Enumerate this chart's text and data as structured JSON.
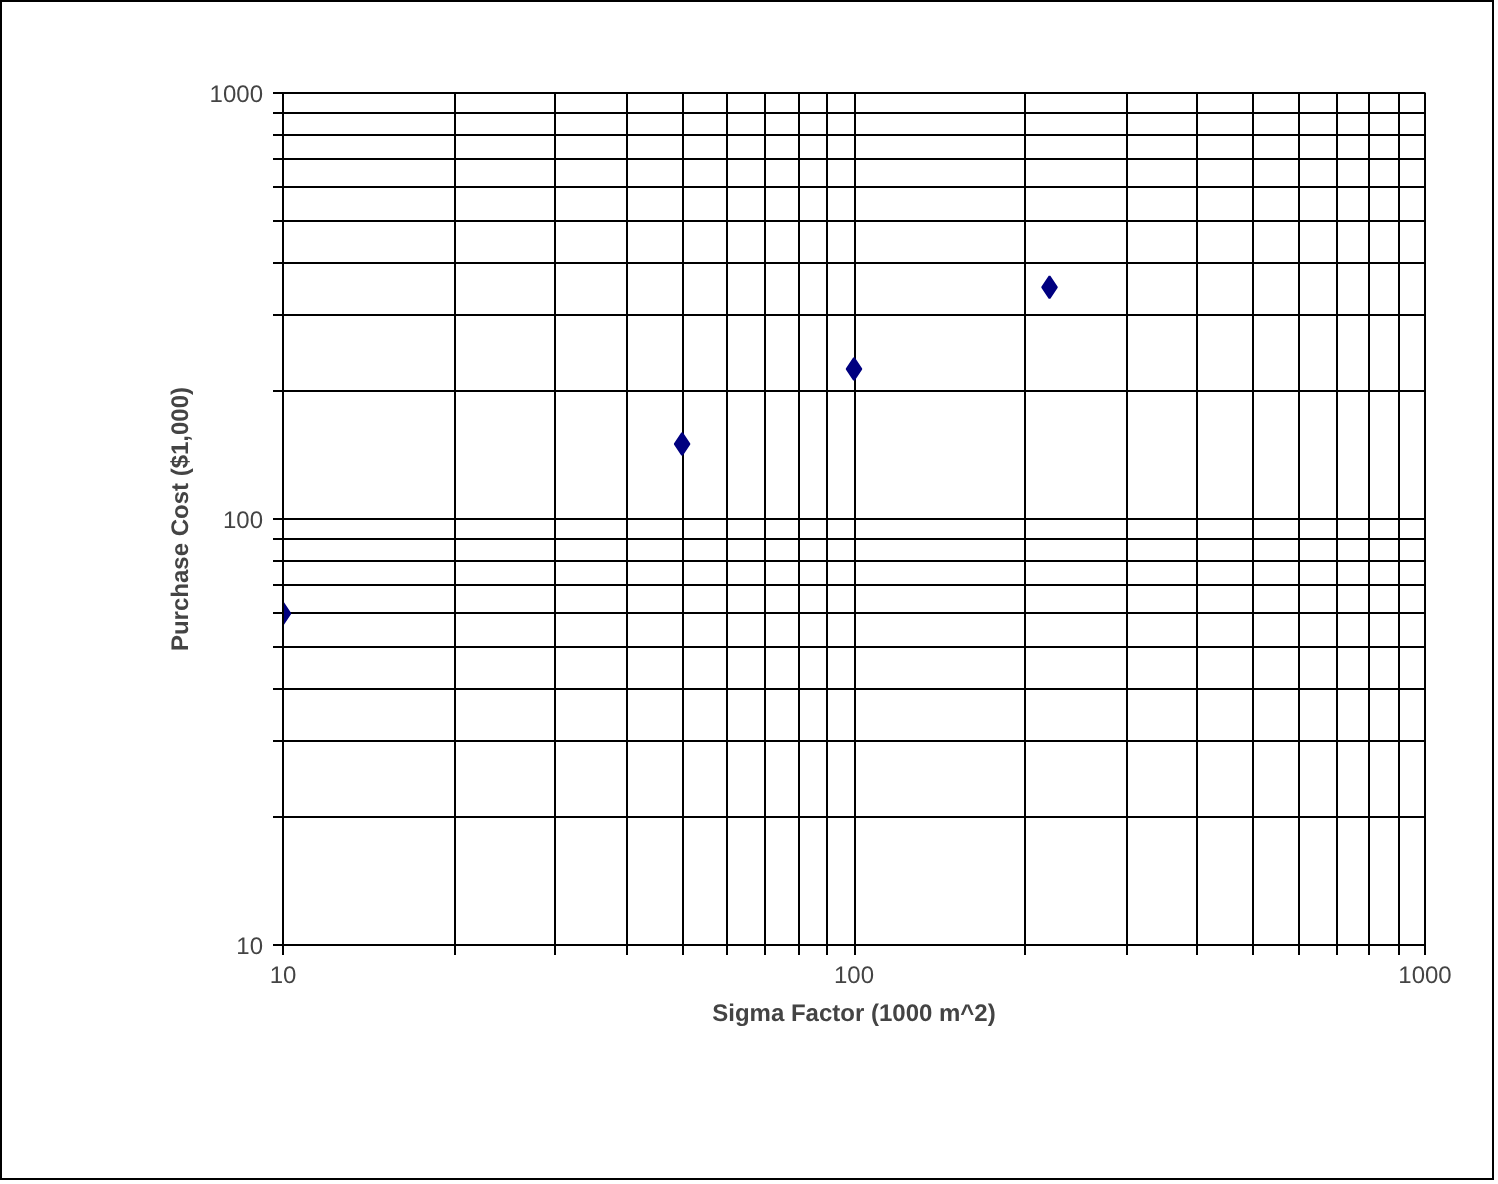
{
  "chart_data": {
    "type": "scatter",
    "xlabel": "Sigma Factor (1000 m^2)",
    "ylabel": "Purchase Cost ($1,000)",
    "x": [
      10,
      50,
      100,
      220
    ],
    "series": [
      {
        "color": "#000080",
        "values": [
          60,
          150,
          225,
          350
        ]
      }
    ],
    "log": "xy",
    "xlim": [
      10,
      1000
    ],
    "ylim": [
      10,
      1000
    ],
    "xticks": [
      10,
      {
        "value": 20,
        "label": null
      },
      {
        "value": 30,
        "label": null
      },
      {
        "value": 40,
        "label": null
      },
      {
        "value": 50,
        "label": null
      },
      {
        "value": 60,
        "label": null
      },
      {
        "value": 70,
        "label": null
      },
      {
        "value": 80,
        "label": null
      },
      {
        "value": 90,
        "label": null
      },
      100,
      {
        "value": 200,
        "label": null
      },
      {
        "value": 300,
        "label": null
      },
      {
        "value": 400,
        "label": null
      },
      {
        "value": 500,
        "label": null
      },
      {
        "value": 600,
        "label": null
      },
      {
        "value": 700,
        "label": null
      },
      {
        "value": 800,
        "label": null
      },
      {
        "value": 900,
        "label": null
      },
      1000
    ],
    "yticks": [
      10,
      {
        "value": 20,
        "label": null
      },
      {
        "value": 30,
        "label": null
      },
      {
        "value": 40,
        "label": null
      },
      {
        "value": 50,
        "label": null
      },
      {
        "value": 60,
        "label": null
      },
      {
        "value": 70,
        "label": null
      },
      {
        "value": 80,
        "label": null
      },
      {
        "value": 90,
        "label": null
      },
      100,
      {
        "value": 200,
        "label": null
      },
      {
        "value": 300,
        "label": null
      },
      {
        "value": 400,
        "label": null
      },
      {
        "value": 500,
        "label": null
      },
      {
        "value": 600,
        "label": null
      },
      {
        "value": 700,
        "label": null
      },
      {
        "value": 800,
        "label": null
      },
      {
        "value": 900,
        "label": null
      },
      1000
    ],
    "grid": true,
    "marker": "diamond"
  }
}
